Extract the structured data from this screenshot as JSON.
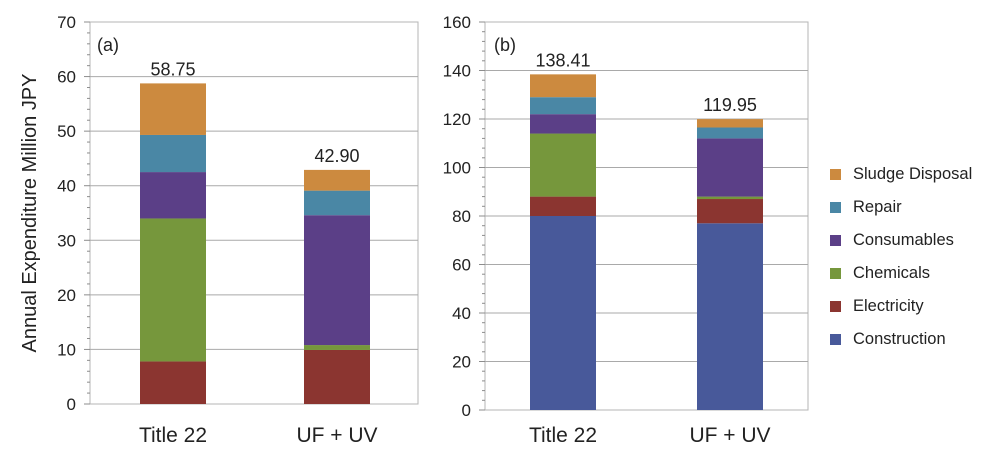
{
  "chart_data": [
    {
      "type": "bar",
      "stacked": true,
      "panel_label": "(a)",
      "ylabel": "Annual Expenditure Million JPY",
      "ylim": [
        0,
        70
      ],
      "yticks": [
        0,
        10,
        20,
        30,
        40,
        50,
        60,
        70
      ],
      "categories": [
        "Title 22",
        "UF + UV"
      ],
      "totals_labels": [
        "58.75",
        "42.90"
      ],
      "series": [
        {
          "name": "Electricity",
          "color": "#8b3530",
          "values": [
            7.8,
            9.9
          ]
        },
        {
          "name": "Chemicals",
          "color": "#76973c",
          "values": [
            26.2,
            0.9
          ]
        },
        {
          "name": "Consumables",
          "color": "#5b3f87",
          "values": [
            8.5,
            23.8
          ]
        },
        {
          "name": "Repair",
          "color": "#4a87a5",
          "values": [
            6.8,
            4.5
          ]
        },
        {
          "name": "Sludge Disposal",
          "color": "#cc8a3f",
          "values": [
            9.45,
            3.8
          ]
        }
      ],
      "grid": true
    },
    {
      "type": "bar",
      "stacked": true,
      "panel_label": "(b)",
      "ylim": [
        0,
        160
      ],
      "yticks": [
        0,
        20,
        40,
        60,
        80,
        100,
        120,
        140,
        160
      ],
      "categories": [
        "Title 22",
        "UF + UV"
      ],
      "totals_labels": [
        "138.41",
        "119.95"
      ],
      "series": [
        {
          "name": "Construction",
          "color": "#48599a",
          "values": [
            80,
            77
          ]
        },
        {
          "name": "Electricity",
          "color": "#8b3530",
          "values": [
            8,
            10
          ]
        },
        {
          "name": "Chemicals",
          "color": "#76973c",
          "values": [
            26,
            1
          ]
        },
        {
          "name": "Consumables",
          "color": "#5b3f87",
          "values": [
            8,
            24
          ]
        },
        {
          "name": "Repair",
          "color": "#4a87a5",
          "values": [
            7,
            4.5
          ]
        },
        {
          "name": "Sludge Disposal",
          "color": "#cc8a3f",
          "values": [
            9.41,
            3.45
          ]
        }
      ],
      "grid": true
    }
  ],
  "legend": {
    "placement": "right",
    "items": [
      {
        "label": "Sludge Disposal",
        "color": "#cc8a3f"
      },
      {
        "label": "Repair",
        "color": "#4a87a5"
      },
      {
        "label": "Consumables",
        "color": "#5b3f87"
      },
      {
        "label": "Chemicals",
        "color": "#76973c"
      },
      {
        "label": "Electricity",
        "color": "#8b3530"
      },
      {
        "label": "Construction",
        "color": "#48599a"
      }
    ]
  }
}
